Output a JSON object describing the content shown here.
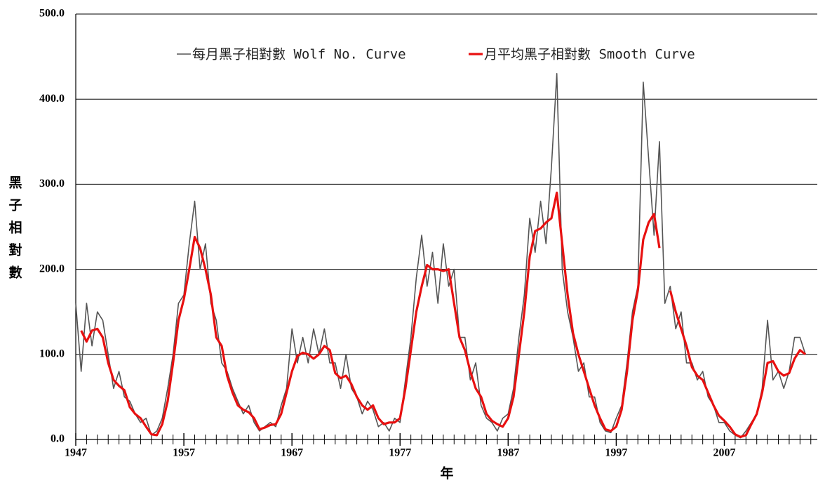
{
  "chart_data": {
    "type": "line",
    "y_label": "黑子相對數",
    "x_label": "年",
    "x": [
      1947,
      1947.5,
      1948,
      1948.5,
      1949,
      1949.5,
      1950,
      1950.5,
      1951,
      1951.5,
      1952,
      1952.5,
      1953,
      1953.5,
      1954,
      1954.5,
      1955,
      1955.5,
      1956,
      1956.5,
      1957,
      1957.5,
      1958,
      1958.5,
      1959,
      1959.5,
      1960,
      1960.5,
      1961,
      1961.5,
      1962,
      1962.5,
      1963,
      1963.5,
      1964,
      1964.5,
      1965,
      1965.5,
      1966,
      1966.5,
      1967,
      1967.5,
      1968,
      1968.5,
      1969,
      1969.5,
      1970,
      1970.5,
      1971,
      1971.5,
      1972,
      1972.5,
      1973,
      1973.5,
      1974,
      1974.5,
      1975,
      1975.5,
      1976,
      1976.5,
      1977,
      1977.5,
      1978,
      1978.5,
      1979,
      1979.5,
      1980,
      1980.5,
      1981,
      1981.5,
      1982,
      1982.5,
      1983,
      1983.5,
      1984,
      1984.5,
      1985,
      1985.5,
      1986,
      1986.5,
      1987,
      1987.5,
      1988,
      1988.5,
      1989,
      1989.5,
      1990,
      1990.5,
      1991,
      1991.5,
      1992,
      1992.5,
      1993,
      1993.5,
      1994,
      1994.5,
      1995,
      1995.5,
      1996,
      1996.5,
      1997,
      1997.5,
      1998,
      1998.5,
      1999,
      1999.5,
      2000,
      2000.5,
      2001,
      2001.5,
      2002,
      2002.5,
      2003,
      2003.5,
      2004,
      2004.5,
      2005,
      2005.5,
      2006,
      2006.5,
      2007,
      2007.5,
      2008,
      2008.5,
      2009,
      2009.5,
      2010,
      2010.5,
      2011,
      2011.5,
      2012,
      2012.5,
      2013,
      2013.5,
      2014,
      2014.5
    ],
    "series": [
      {
        "name": "每月黑子相對數 Wolf No. Curve",
        "color": "#555555",
        "width": 1.6,
        "values": [
          160,
          80,
          160,
          110,
          150,
          140,
          100,
          60,
          80,
          50,
          45,
          30,
          20,
          25,
          5,
          10,
          25,
          60,
          100,
          160,
          170,
          230,
          280,
          200,
          230,
          160,
          140,
          90,
          80,
          60,
          45,
          30,
          40,
          20,
          10,
          15,
          20,
          15,
          40,
          60,
          130,
          90,
          120,
          90,
          130,
          100,
          130,
          90,
          90,
          60,
          100,
          60,
          50,
          30,
          45,
          35,
          15,
          20,
          10,
          25,
          20,
          70,
          120,
          190,
          240,
          180,
          220,
          160,
          230,
          180,
          200,
          120,
          120,
          70,
          90,
          40,
          25,
          20,
          10,
          25,
          30,
          60,
          120,
          170,
          260,
          220,
          280,
          230,
          320,
          430,
          200,
          150,
          120,
          80,
          90,
          50,
          50,
          20,
          10,
          8,
          25,
          40,
          90,
          150,
          180,
          420,
          330,
          240,
          350,
          160,
          180,
          130,
          150,
          90,
          90,
          70,
          80,
          50,
          40,
          20,
          20,
          10,
          5,
          2,
          10,
          20,
          30,
          60,
          140,
          70,
          80,
          60,
          80,
          120,
          120,
          100
        ]
      },
      {
        "name": "月平均黑子相對數 Smooth Curve",
        "color": "#e81010",
        "width": 3.2,
        "values": [
          null,
          128,
          115,
          128,
          130,
          120,
          90,
          70,
          63,
          58,
          38,
          30,
          25,
          15,
          6,
          5,
          18,
          45,
          90,
          140,
          165,
          200,
          238,
          225,
          200,
          170,
          120,
          110,
          75,
          55,
          40,
          35,
          32,
          25,
          12,
          14,
          17,
          18,
          30,
          55,
          80,
          98,
          102,
          100,
          95,
          100,
          110,
          105,
          78,
          72,
          75,
          65,
          50,
          40,
          35,
          40,
          25,
          18,
          20,
          20,
          25,
          60,
          105,
          150,
          180,
          205,
          200,
          200,
          198,
          200,
          160,
          120,
          105,
          80,
          60,
          50,
          30,
          22,
          18,
          15,
          25,
          50,
          100,
          150,
          215,
          245,
          248,
          255,
          260,
          290,
          230,
          170,
          125,
          100,
          80,
          60,
          40,
          25,
          12,
          10,
          15,
          35,
          80,
          140,
          175,
          235,
          255,
          265,
          225,
          null,
          175,
          150,
          130,
          110,
          85,
          75,
          70,
          55,
          40,
          28,
          22,
          15,
          6,
          3,
          5,
          18,
          30,
          55,
          90,
          92,
          80,
          75,
          78,
          95,
          105,
          100
        ]
      }
    ],
    "xlim": [
      1947,
      2015.6
    ],
    "xticks": [
      1947,
      1957,
      1967,
      1977,
      1987,
      1997,
      2007
    ],
    "xminor_step": 1,
    "ylim": [
      0,
      500
    ],
    "yticks": [
      {
        "value": 0,
        "label": "0.0"
      },
      {
        "value": 100,
        "label": "100.0"
      },
      {
        "value": 200,
        "label": "200.0"
      },
      {
        "value": 300,
        "label": "300.0"
      },
      {
        "value": 400,
        "label": "400.0"
      },
      {
        "value": 500,
        "label": "500.0"
      }
    ],
    "grid": true,
    "legend": "top"
  }
}
